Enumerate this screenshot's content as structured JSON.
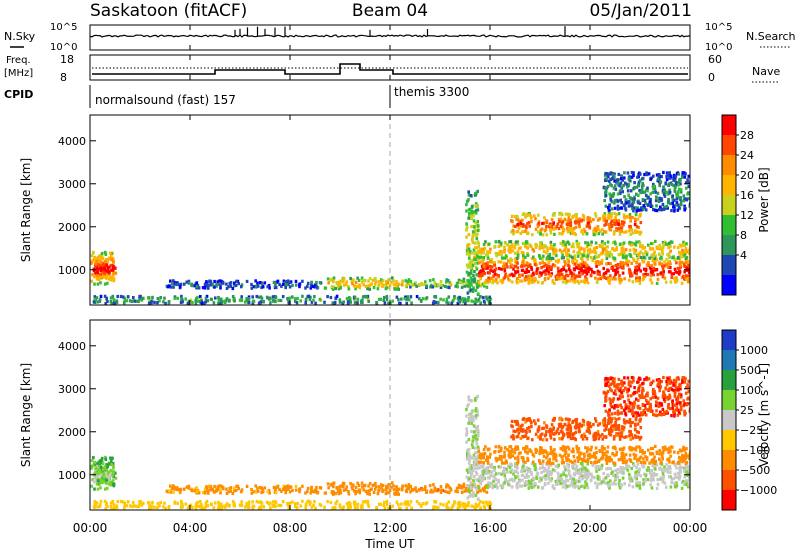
{
  "header": {
    "station": "Saskatoon (fitACF)",
    "beam": "Beam 04",
    "date": "05/Jan/2011"
  },
  "aux_panels": {
    "nsky_label": "N.Sky",
    "nsearch_label": "N.Search",
    "freq_label_1": "Freq.",
    "freq_label_2": "[MHz]",
    "nave_label": "Nave",
    "cpid_label": "CPID",
    "noise_ticks": [
      "10^5",
      "10^0"
    ],
    "freq_ticks": [
      "18",
      "8"
    ],
    "nave_ticks": [
      "60",
      "0"
    ],
    "cpid_segments": [
      {
        "name": "normalsound (fast)",
        "id": "157",
        "text": "normalsound (fast) 157"
      },
      {
        "name": "themis",
        "id": "3300",
        "text": "themis 3300"
      }
    ],
    "cpid_change_hour": 12
  },
  "time_axis": {
    "label": "Time UT",
    "ticks": [
      "00:00",
      "04:00",
      "08:00",
      "12:00",
      "16:00",
      "20:00",
      "00:00"
    ],
    "tick_hours": [
      0,
      4,
      8,
      12,
      16,
      20,
      24
    ]
  },
  "range_axis": {
    "label": "Slant Range [km]",
    "ticks": [
      "1000",
      "2000",
      "3000",
      "4000"
    ],
    "tick_values": [
      1000,
      2000,
      3000,
      4000
    ],
    "range": [
      180,
      4600
    ]
  },
  "power_scale": {
    "title": "Power [dB]",
    "labels": [
      "28",
      "24",
      "20",
      "16",
      "12",
      "8",
      "4"
    ],
    "colors": [
      "#ff0000",
      "#ff4500",
      "#ff8c00",
      "#ffb400",
      "#c8d21e",
      "#32be32",
      "#2d965a",
      "#1e46b4",
      "#0000ff"
    ]
  },
  "velocity_scale": {
    "title": "Velocity [m s^-1]",
    "labels": [
      "1000",
      "500",
      "100",
      "25",
      "−25",
      "−100",
      "−500",
      "−1000"
    ],
    "colors": [
      "#1e3cc8",
      "#1e78b4",
      "#28a03c",
      "#78d232",
      "#c8c8c8",
      "#ffc800",
      "#ff8c00",
      "#ff5000",
      "#ff0000"
    ]
  },
  "chart_data": {
    "type": "heatmap",
    "x": "time (hours UT)",
    "y": "slant range (km)",
    "xlim": [
      0,
      24
    ],
    "ylim": [
      180,
      4600
    ],
    "panels": [
      "power",
      "velocity"
    ],
    "echo_regions": [
      {
        "t0": 0.0,
        "t1": 1.0,
        "r0": 700,
        "r1": 1450,
        "power": 24,
        "velocity": 60
      },
      {
        "t0": 0.1,
        "t1": 0.9,
        "r0": 850,
        "r1": 1250,
        "power": 30,
        "velocity": 40
      },
      {
        "t0": 0.0,
        "t1": 16.0,
        "r0": 250,
        "r1": 420,
        "power": 10,
        "velocity": -60
      },
      {
        "t0": 3.0,
        "t1": 9.3,
        "r0": 600,
        "r1": 780,
        "power": 6,
        "velocity": -150
      },
      {
        "t0": 9.3,
        "t1": 12.5,
        "r0": 580,
        "r1": 850,
        "power": 18,
        "velocity": -200
      },
      {
        "t0": 12.5,
        "t1": 16.0,
        "r0": 620,
        "r1": 820,
        "power": 14,
        "velocity": -220
      },
      {
        "t0": 15.0,
        "t1": 15.5,
        "r0": 400,
        "r1": 2900,
        "power": 14,
        "velocity": 15
      },
      {
        "t0": 15.5,
        "t1": 24.0,
        "r0": 720,
        "r1": 1300,
        "power": 28,
        "velocity": 10
      },
      {
        "t0": 15.5,
        "t1": 24.0,
        "r0": 1300,
        "r1": 1700,
        "power": 18,
        "velocity": -180
      },
      {
        "t0": 16.8,
        "t1": 22.0,
        "r0": 1850,
        "r1": 2350,
        "power": 24,
        "velocity": -450
      },
      {
        "t0": 20.5,
        "t1": 24.0,
        "r0": 2400,
        "r1": 3300,
        "power": 8,
        "velocity": -600
      }
    ]
  }
}
